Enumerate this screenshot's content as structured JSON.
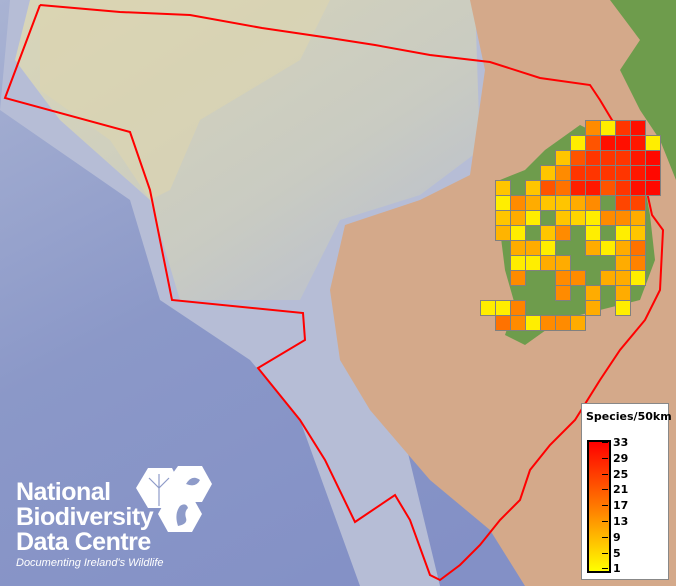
{
  "map": {
    "boundary_color": "#ff0000",
    "cell_size_label": "50km",
    "grid_species_counts": [
      [
        null,
        null,
        null,
        null,
        null,
        null,
        null,
        15,
        3,
        26,
        31,
        null
      ],
      [
        null,
        null,
        null,
        null,
        null,
        null,
        3,
        22,
        31,
        31,
        30,
        3
      ],
      [
        null,
        null,
        null,
        null,
        null,
        8,
        22,
        26,
        26,
        26,
        30,
        32
      ],
      [
        null,
        null,
        null,
        null,
        8,
        15,
        26,
        26,
        26,
        26,
        30,
        32
      ],
      [
        null,
        8,
        null,
        8,
        22,
        18,
        29,
        30,
        22,
        26,
        31,
        32
      ],
      [
        null,
        3,
        15,
        11,
        8,
        8,
        11,
        15,
        null,
        24,
        24,
        null
      ],
      [
        null,
        8,
        11,
        3,
        null,
        8,
        6,
        3,
        15,
        15,
        11,
        null
      ],
      [
        null,
        10,
        3,
        null,
        8,
        15,
        null,
        3,
        null,
        3,
        8,
        null
      ],
      [
        null,
        null,
        11,
        11,
        3,
        null,
        null,
        11,
        3,
        11,
        18,
        null
      ],
      [
        null,
        null,
        3,
        3,
        11,
        11,
        null,
        null,
        null,
        11,
        16,
        null
      ],
      [
        null,
        null,
        15,
        null,
        null,
        15,
        15,
        null,
        11,
        11,
        3,
        null
      ],
      [
        null,
        null,
        null,
        null,
        null,
        15,
        null,
        11,
        null,
        11,
        null,
        null
      ],
      [
        3,
        3,
        16,
        null,
        null,
        null,
        null,
        11,
        null,
        3,
        null,
        null
      ],
      [
        null,
        18,
        15,
        3,
        15,
        15,
        11,
        null,
        null,
        null,
        null,
        null
      ]
    ],
    "color_scale": [
      "#ffff00",
      "#ff7a00",
      "#ff0000"
    ]
  },
  "legend": {
    "title": "Species/50km",
    "min": 1,
    "max": 33,
    "ticks": [
      "33",
      "29",
      "25",
      "21",
      "17",
      "13",
      "9",
      "5",
      "1"
    ]
  },
  "logo": {
    "line1": "National",
    "line2": "Biodiversity",
    "line3": "Data Centre",
    "tagline": "Documenting Ireland's Wildlife"
  }
}
